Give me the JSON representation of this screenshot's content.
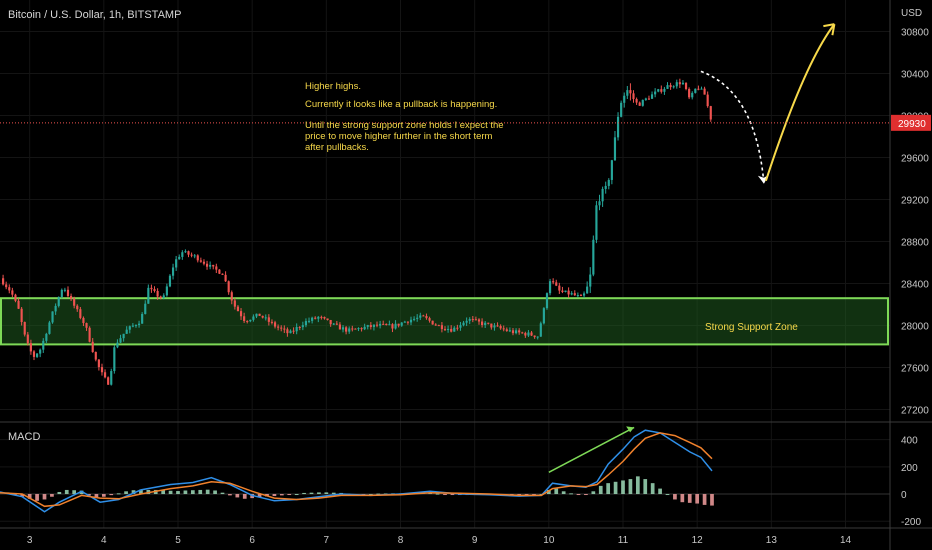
{
  "header": {
    "symbol_title": "Bitcoin / U.S. Dollar, 1h, BITSTAMP"
  },
  "price_axis": {
    "currency": "USD",
    "last_price": "29930"
  },
  "colors": {
    "up": "#26a69a",
    "down": "#ef5350",
    "annotation": "#f7d94a",
    "zone_stroke": "#7ed957",
    "zone_fill": "#1f5a1f",
    "macd_line": "#2f8fe8",
    "signal_line": "#f0812c",
    "divergence_line": "#7ed957",
    "grid": "#141414",
    "axis_text": "#c8c8c8",
    "background": "#000000"
  },
  "annotations": {
    "note_lines": [
      "Higher highs.",
      "Currently it looks like a pullback is happening.",
      "Until the strong support zone holds I expect the",
      "price to move higher further in the short term",
      "after pullbacks."
    ],
    "support_zone_label": "Strong Support Zone"
  },
  "macd_panel": {
    "label": "MACD"
  },
  "chart_data": [
    {
      "type": "candlestick",
      "title": "Bitcoin / U.S. Dollar, 1h, BITSTAMP",
      "ylabel": "USD",
      "ylim": [
        27100,
        31100
      ],
      "y_ticks": [
        27200,
        27600,
        28000,
        28400,
        28800,
        29200,
        29600,
        30000,
        30400,
        30800
      ],
      "x_tick_labels": [
        "3",
        "4",
        "5",
        "6",
        "7",
        "8",
        "9",
        "10",
        "11",
        "12",
        "13",
        "14"
      ],
      "x_range_days": [
        2.6,
        14.6
      ],
      "last_price": 29930,
      "support_zone": {
        "low": 27820,
        "high": 28260
      },
      "price_path": [
        [
          2.6,
          28450
        ],
        [
          2.75,
          28320
        ],
        [
          2.85,
          28150
        ],
        [
          2.95,
          27850
        ],
        [
          3.05,
          27700
        ],
        [
          3.15,
          27780
        ],
        [
          3.3,
          28100
        ],
        [
          3.45,
          28380
        ],
        [
          3.55,
          28250
        ],
        [
          3.75,
          28000
        ],
        [
          3.9,
          27650
        ],
        [
          4.0,
          27500
        ],
        [
          4.07,
          27450
        ],
        [
          4.15,
          27820
        ],
        [
          4.3,
          27950
        ],
        [
          4.5,
          28050
        ],
        [
          4.6,
          28350
        ],
        [
          4.8,
          28250
        ],
        [
          4.95,
          28600
        ],
        [
          5.05,
          28700
        ],
        [
          5.25,
          28650
        ],
        [
          5.45,
          28550
        ],
        [
          5.6,
          28500
        ],
        [
          5.75,
          28200
        ],
        [
          5.9,
          28050
        ],
        [
          6.1,
          28100
        ],
        [
          6.3,
          28000
        ],
        [
          6.5,
          27920
        ],
        [
          6.7,
          28030
        ],
        [
          6.9,
          28080
        ],
        [
          7.1,
          28000
        ],
        [
          7.3,
          27950
        ],
        [
          7.5,
          27980
        ],
        [
          7.7,
          28000
        ],
        [
          7.9,
          27990
        ],
        [
          8.1,
          28050
        ],
        [
          8.3,
          28080
        ],
        [
          8.5,
          28000
        ],
        [
          8.7,
          27960
        ],
        [
          8.9,
          28060
        ],
        [
          9.1,
          28020
        ],
        [
          9.3,
          27980
        ],
        [
          9.5,
          27940
        ],
        [
          9.7,
          27920
        ],
        [
          9.85,
          27900
        ],
        [
          9.95,
          28200
        ],
        [
          10.0,
          28450
        ],
        [
          10.15,
          28320
        ],
        [
          10.3,
          28300
        ],
        [
          10.45,
          28260
        ],
        [
          10.55,
          28400
        ],
        [
          10.65,
          29200
        ],
        [
          10.78,
          29300
        ],
        [
          10.88,
          29700
        ],
        [
          10.95,
          30100
        ],
        [
          11.05,
          30250
        ],
        [
          11.2,
          30100
        ],
        [
          11.4,
          30200
        ],
        [
          11.6,
          30280
        ],
        [
          11.8,
          30320
        ],
        [
          11.9,
          30150
        ],
        [
          12.0,
          30280
        ],
        [
          12.1,
          30200
        ],
        [
          12.2,
          29930
        ]
      ],
      "projection": {
        "pullback_to": [
          12.9,
          29350
        ],
        "target": [
          13.85,
          30870
        ]
      }
    },
    {
      "type": "line",
      "title": "MACD",
      "ylim": [
        -250,
        530
      ],
      "y_ticks": [
        -200,
        0,
        200,
        400
      ],
      "series": [
        {
          "key": "macd",
          "points": [
            [
              2.6,
              15
            ],
            [
              2.9,
              -20
            ],
            [
              3.2,
              -130
            ],
            [
              3.4,
              -60
            ],
            [
              3.7,
              20
            ],
            [
              3.95,
              -60
            ],
            [
              4.2,
              -40
            ],
            [
              4.5,
              30
            ],
            [
              4.9,
              70
            ],
            [
              5.2,
              85
            ],
            [
              5.45,
              120
            ],
            [
              5.7,
              70
            ],
            [
              6.0,
              -10
            ],
            [
              6.3,
              -50
            ],
            [
              6.6,
              -40
            ],
            [
              6.9,
              -20
            ],
            [
              7.2,
              0
            ],
            [
              7.6,
              -10
            ],
            [
              8.0,
              0
            ],
            [
              8.4,
              20
            ],
            [
              8.8,
              0
            ],
            [
              9.2,
              -5
            ],
            [
              9.6,
              -15
            ],
            [
              9.9,
              -10
            ],
            [
              10.05,
              80
            ],
            [
              10.3,
              60
            ],
            [
              10.5,
              50
            ],
            [
              10.65,
              90
            ],
            [
              10.8,
              220
            ],
            [
              11.0,
              330
            ],
            [
              11.15,
              420
            ],
            [
              11.3,
              470
            ],
            [
              11.5,
              450
            ],
            [
              11.7,
              380
            ],
            [
              11.9,
              310
            ],
            [
              12.05,
              270
            ],
            [
              12.2,
              170
            ]
          ]
        },
        {
          "key": "signal",
          "points": [
            [
              2.6,
              10
            ],
            [
              2.9,
              0
            ],
            [
              3.2,
              -90
            ],
            [
              3.4,
              -80
            ],
            [
              3.7,
              -10
            ],
            [
              3.95,
              -30
            ],
            [
              4.2,
              -35
            ],
            [
              4.5,
              0
            ],
            [
              4.9,
              40
            ],
            [
              5.2,
              60
            ],
            [
              5.45,
              90
            ],
            [
              5.7,
              80
            ],
            [
              6.0,
              20
            ],
            [
              6.3,
              -30
            ],
            [
              6.6,
              -40
            ],
            [
              6.9,
              -30
            ],
            [
              7.2,
              -10
            ],
            [
              7.6,
              -10
            ],
            [
              8.0,
              -5
            ],
            [
              8.4,
              10
            ],
            [
              8.8,
              5
            ],
            [
              9.2,
              0
            ],
            [
              9.6,
              -10
            ],
            [
              9.9,
              -10
            ],
            [
              10.05,
              40
            ],
            [
              10.3,
              60
            ],
            [
              10.5,
              55
            ],
            [
              10.65,
              70
            ],
            [
              10.8,
              140
            ],
            [
              11.0,
              240
            ],
            [
              11.15,
              330
            ],
            [
              11.3,
              410
            ],
            [
              11.5,
              450
            ],
            [
              11.7,
              430
            ],
            [
              11.9,
              380
            ],
            [
              12.05,
              340
            ],
            [
              12.2,
              260
            ]
          ]
        }
      ],
      "histogram": [
        [
          2.7,
          12
        ],
        [
          2.8,
          -8
        ],
        [
          2.9,
          -20
        ],
        [
          3.0,
          -35
        ],
        [
          3.1,
          -50
        ],
        [
          3.2,
          -40
        ],
        [
          3.3,
          -20
        ],
        [
          3.4,
          15
        ],
        [
          3.5,
          30
        ],
        [
          3.6,
          28
        ],
        [
          3.7,
          25
        ],
        [
          3.8,
          -10
        ],
        [
          3.9,
          -25
        ],
        [
          4.0,
          -20
        ],
        [
          4.1,
          -8
        ],
        [
          4.2,
          5
        ],
        [
          4.3,
          20
        ],
        [
          4.4,
          28
        ],
        [
          4.5,
          32
        ],
        [
          4.6,
          30
        ],
        [
          4.7,
          30
        ],
        [
          4.8,
          28
        ],
        [
          4.9,
          24
        ],
        [
          5.0,
          22
        ],
        [
          5.1,
          26
        ],
        [
          5.2,
          28
        ],
        [
          5.3,
          30
        ],
        [
          5.4,
          32
        ],
        [
          5.5,
          26
        ],
        [
          5.6,
          10
        ],
        [
          5.7,
          -10
        ],
        [
          5.8,
          -25
        ],
        [
          5.9,
          -35
        ],
        [
          6.0,
          -30
        ],
        [
          6.1,
          -25
        ],
        [
          6.2,
          -18
        ],
        [
          6.3,
          -15
        ],
        [
          6.4,
          -10
        ],
        [
          6.5,
          -5
        ],
        [
          6.6,
          0
        ],
        [
          6.7,
          8
        ],
        [
          6.8,
          10
        ],
        [
          6.9,
          12
        ],
        [
          7.0,
          12
        ],
        [
          7.1,
          10
        ],
        [
          7.2,
          8
        ],
        [
          7.3,
          2
        ],
        [
          7.4,
          -3
        ],
        [
          7.5,
          -2
        ],
        [
          7.6,
          0
        ],
        [
          7.7,
          3
        ],
        [
          7.8,
          4
        ],
        [
          7.9,
          5
        ],
        [
          8.0,
          5
        ],
        [
          8.1,
          7
        ],
        [
          8.2,
          9
        ],
        [
          8.3,
          10
        ],
        [
          8.4,
          10
        ],
        [
          8.5,
          3
        ],
        [
          8.6,
          -2
        ],
        [
          8.7,
          -5
        ],
        [
          8.8,
          -5
        ],
        [
          8.9,
          -3
        ],
        [
          9.0,
          -2
        ],
        [
          9.1,
          -3
        ],
        [
          9.2,
          -5
        ],
        [
          9.3,
          -5
        ],
        [
          9.4,
          -4
        ],
        [
          9.5,
          -3
        ],
        [
          9.6,
          -4
        ],
        [
          9.7,
          -3
        ],
        [
          9.8,
          -2
        ],
        [
          9.9,
          0
        ],
        [
          10.0,
          30
        ],
        [
          10.1,
          40
        ],
        [
          10.2,
          20
        ],
        [
          10.3,
          5
        ],
        [
          10.4,
          -5
        ],
        [
          10.5,
          -5
        ],
        [
          10.6,
          20
        ],
        [
          10.7,
          60
        ],
        [
          10.8,
          80
        ],
        [
          10.9,
          90
        ],
        [
          11.0,
          100
        ],
        [
          11.1,
          110
        ],
        [
          11.2,
          130
        ],
        [
          11.3,
          110
        ],
        [
          11.4,
          80
        ],
        [
          11.5,
          40
        ],
        [
          11.6,
          0
        ],
        [
          11.7,
          -40
        ],
        [
          11.8,
          -60
        ],
        [
          11.9,
          -65
        ],
        [
          12.0,
          -70
        ],
        [
          12.1,
          -80
        ],
        [
          12.2,
          -85
        ]
      ],
      "divergence_line": [
        [
          10.0,
          160
        ],
        [
          11.15,
          490
        ]
      ]
    }
  ]
}
